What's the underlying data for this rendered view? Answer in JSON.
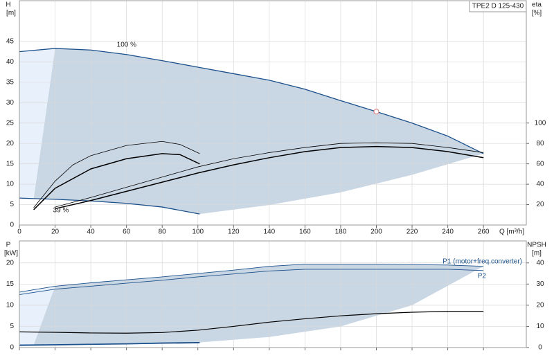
{
  "chart_data": [
    {
      "type": "line",
      "title": "TPE2 D 125-430",
      "y_label": "H",
      "y_unit": "[m]",
      "y2_label": "eta",
      "y2_unit": "[%]",
      "x_label": "Q [m³/h]",
      "xlim": [
        0,
        284
      ],
      "ylim": [
        0,
        55
      ],
      "y2lim": [
        0,
        220
      ],
      "xticks": [
        0,
        20,
        40,
        60,
        80,
        100,
        120,
        140,
        160,
        180,
        200,
        220,
        240,
        260
      ],
      "yticks": [
        0,
        5,
        10,
        15,
        20,
        25,
        30,
        35,
        40,
        45
      ],
      "y2ticks": [
        20,
        40,
        60,
        80,
        100
      ],
      "x_tick_labels": true,
      "grid": true,
      "areas": [
        {
          "color": "#c9d6e4",
          "x": [
            20,
            40,
            60,
            80,
            100,
            120,
            140,
            160,
            180,
            200,
            220,
            240,
            260,
            220,
            180,
            140,
            101,
            80,
            60,
            40,
            20,
            8
          ],
          "values": [
            43.3,
            42.9,
            41.8,
            40.3,
            38.7,
            37.1,
            35.5,
            33.3,
            30.5,
            27.8,
            25,
            21.8,
            17.5,
            12.3,
            8,
            4.9,
            2.7,
            4.4,
            5.3,
            5.9,
            6.3,
            6.5
          ]
        },
        {
          "color": "#e8f1fb",
          "x": [
            0,
            20,
            8,
            0
          ],
          "values": [
            42.5,
            43.3,
            6.5,
            6.6
          ]
        }
      ],
      "series": [
        {
          "name": "100 %",
          "color": "#1a4f8a",
          "width": 1.3,
          "x": [
            0,
            20,
            40,
            60,
            80,
            100,
            120,
            140,
            160,
            180,
            200,
            220,
            240,
            260
          ],
          "values": [
            42.5,
            43.3,
            42.9,
            41.8,
            40.3,
            38.7,
            37.1,
            35.5,
            33.3,
            30.5,
            27.8,
            25,
            21.8,
            17.5
          ]
        },
        {
          "name": "39 %",
          "color": "#1a4f8a",
          "width": 1.3,
          "x": [
            0,
            20,
            40,
            60,
            80,
            101
          ],
          "values": [
            6.6,
            6.3,
            5.9,
            5.3,
            4.4,
            2.7
          ]
        },
        {
          "axis": "y2",
          "color": "#000",
          "width": 0.8,
          "x": [
            20,
            40,
            60,
            80,
            100,
            120,
            140,
            160,
            180,
            200,
            220,
            240,
            260
          ],
          "values": [
            17.6,
            27,
            37,
            47,
            57,
            65,
            71,
            76,
            80,
            80.6,
            80,
            76,
            71
          ]
        },
        {
          "axis": "y2",
          "color": "#000",
          "width": 1.5,
          "x": [
            20,
            40,
            60,
            80,
            100,
            120,
            140,
            160,
            180,
            200,
            220,
            240,
            260
          ],
          "values": [
            16,
            24,
            33,
            42,
            51,
            59,
            66,
            72,
            76,
            77,
            76,
            72,
            66
          ]
        },
        {
          "axis": "y2",
          "color": "#000",
          "width": 0.8,
          "x": [
            8,
            20,
            30,
            40,
            60,
            80,
            90,
            101
          ],
          "values": [
            17,
            43,
            59,
            68,
            78,
            82,
            79,
            70
          ]
        },
        {
          "axis": "y2",
          "color": "#000",
          "width": 1.5,
          "x": [
            8,
            20,
            40,
            60,
            80,
            90,
            101
          ],
          "values": [
            15,
            36,
            55,
            65,
            70,
            69,
            60
          ]
        }
      ],
      "marker": {
        "x": 200,
        "y": 27.8,
        "color": "#e07070"
      }
    },
    {
      "type": "line",
      "y_label": "P",
      "y_unit": "[kW]",
      "y2_label": "NPSH",
      "y2_unit": "[m]",
      "xlim": [
        0,
        284
      ],
      "ylim": [
        0,
        25.2
      ],
      "y2lim": [
        0,
        50.4
      ],
      "xticks": [
        0,
        20,
        40,
        60,
        80,
        100,
        120,
        140,
        160,
        180,
        200,
        220,
        240,
        260
      ],
      "yticks": [
        0,
        5,
        10,
        15,
        20
      ],
      "y2ticks": [
        0,
        10,
        20,
        30,
        40
      ],
      "x_tick_labels": false,
      "grid": true,
      "areas": [
        {
          "color": "#c9d6e4",
          "x": [
            20,
            40,
            60,
            80,
            100,
            120,
            140,
            160,
            180,
            200,
            220,
            240,
            260,
            220,
            180,
            140,
            101,
            80,
            60,
            40,
            20,
            8
          ],
          "values": [
            14.5,
            15.3,
            16,
            16.7,
            17.5,
            18.3,
            19.2,
            19.7,
            19.7,
            19.7,
            19.6,
            19.5,
            19.2,
            10,
            5,
            2.5,
            1.2,
            1.1,
            0.9,
            0.8,
            0.7,
            0.65
          ]
        },
        {
          "color": "#e8f1fb",
          "x": [
            0,
            20,
            8,
            0
          ],
          "values": [
            13.1,
            14.5,
            0.65,
            0.6
          ]
        }
      ],
      "series": [
        {
          "name": "P1 (motor+freq.converter)",
          "color": "#1a4f8a",
          "width": 0.9,
          "x": [
            0,
            20,
            40,
            60,
            80,
            100,
            120,
            140,
            160,
            180,
            200,
            220,
            240,
            260
          ],
          "values": [
            13.1,
            14.5,
            15.3,
            16,
            16.7,
            17.5,
            18.3,
            19.2,
            19.7,
            19.7,
            19.7,
            19.6,
            19.5,
            19.2
          ]
        },
        {
          "name": "P2",
          "color": "#1a4f8a",
          "width": 0.9,
          "x": [
            0,
            20,
            40,
            60,
            80,
            100,
            120,
            140,
            160,
            200,
            240,
            260
          ],
          "values": [
            12.5,
            13.8,
            14.5,
            15.2,
            15.9,
            16.7,
            17.4,
            18.1,
            18.5,
            18.5,
            18.5,
            18.2
          ]
        },
        {
          "color": "#1a4f8a",
          "width": 1.3,
          "x": [
            0,
            20,
            40,
            60,
            80,
            101
          ],
          "values": [
            0.6,
            0.7,
            0.8,
            0.9,
            1.1,
            1.2
          ]
        },
        {
          "color": "#1a4f8a",
          "width": 1.3,
          "x": [
            0,
            20,
            40,
            60,
            80,
            101
          ],
          "values": [
            0.5,
            0.6,
            0.75,
            0.85,
            1.0,
            1.1
          ]
        },
        {
          "axis": "y2",
          "color": "#000",
          "width": 1.2,
          "x": [
            0,
            20,
            40,
            60,
            80,
            100,
            120,
            140,
            160,
            180,
            200,
            220,
            240,
            260
          ],
          "values": [
            7.4,
            7.2,
            6.9,
            6.8,
            7.1,
            8.2,
            10,
            12,
            13.6,
            15,
            16,
            16.7,
            17.1,
            17.1
          ]
        }
      ]
    }
  ]
}
